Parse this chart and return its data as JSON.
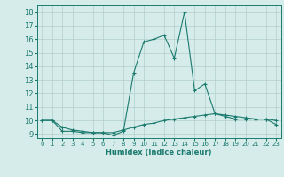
{
  "xlabel": "Humidex (Indice chaleur)",
  "ylabel": "",
  "bg_color": "#d6ecea",
  "grid_color": "#b0d0cc",
  "line_color": "#1a7a6e",
  "xlim": [
    -0.5,
    23.5
  ],
  "ylim": [
    8.7,
    18.5
  ],
  "xticks": [
    0,
    1,
    2,
    3,
    4,
    5,
    6,
    7,
    8,
    9,
    10,
    11,
    12,
    13,
    14,
    15,
    16,
    17,
    18,
    19,
    20,
    21,
    22,
    23
  ],
  "yticks": [
    9,
    10,
    11,
    12,
    13,
    14,
    15,
    16,
    17,
    18
  ],
  "line1_x": [
    0,
    1,
    2,
    3,
    4,
    5,
    6,
    7,
    8,
    9,
    10,
    11,
    12,
    13,
    14,
    15,
    16,
    17,
    18,
    19,
    20,
    21,
    22,
    23
  ],
  "line1_y": [
    10.0,
    10.0,
    9.2,
    9.2,
    9.1,
    9.1,
    9.1,
    8.9,
    9.2,
    13.5,
    15.8,
    16.0,
    16.3,
    14.6,
    18.0,
    12.2,
    12.7,
    10.5,
    10.3,
    10.1,
    10.1,
    10.1,
    10.1,
    9.7
  ],
  "line2_x": [
    0,
    1,
    2,
    3,
    4,
    5,
    6,
    7,
    8,
    9,
    10,
    11,
    12,
    13,
    14,
    15,
    16,
    17,
    18,
    19,
    20,
    21,
    22,
    23
  ],
  "line2_y": [
    10.0,
    10.0,
    9.5,
    9.3,
    9.2,
    9.1,
    9.1,
    9.1,
    9.3,
    9.5,
    9.7,
    9.8,
    10.0,
    10.1,
    10.2,
    10.3,
    10.4,
    10.5,
    10.4,
    10.3,
    10.2,
    10.1,
    10.1,
    10.0
  ],
  "figsize": [
    3.2,
    2.0
  ],
  "dpi": 100
}
